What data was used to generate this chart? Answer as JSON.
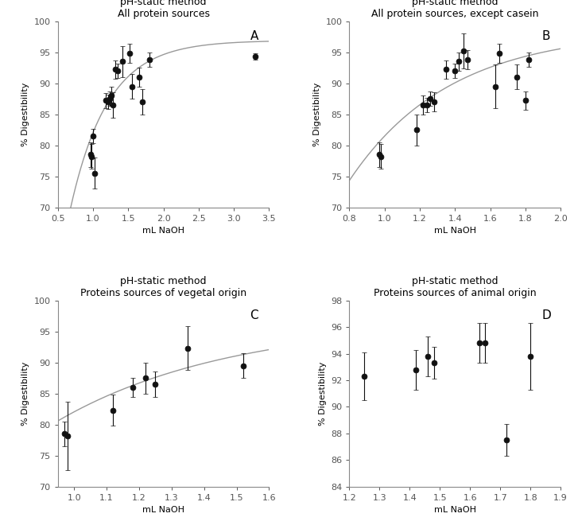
{
  "panel_A": {
    "title_line1": "pH-static method",
    "title_line2": "All protein sources",
    "label": "A",
    "xlabel": "mL NaOH",
    "ylabel": "% Digestibility",
    "xlim": [
      0.5,
      3.5
    ],
    "ylim": [
      70,
      100
    ],
    "xticks": [
      0.5,
      1.0,
      1.5,
      2.0,
      2.5,
      3.0,
      3.5
    ],
    "yticks": [
      70,
      75,
      80,
      85,
      90,
      95,
      100
    ],
    "curve_a": 96.8917,
    "curve_b": 1.8763,
    "data_x": [
      0.97,
      0.98,
      1.0,
      1.02,
      1.18,
      1.22,
      1.24,
      1.26,
      1.28,
      1.32,
      1.35,
      1.42,
      1.52,
      1.55,
      1.65,
      1.7,
      1.8,
      3.3
    ],
    "data_y": [
      78.5,
      78.2,
      81.5,
      75.5,
      87.2,
      87.0,
      87.5,
      88.0,
      86.5,
      92.2,
      92.0,
      93.5,
      94.8,
      89.5,
      91.0,
      87.0,
      93.8,
      94.3
    ],
    "data_yerr": [
      2.0,
      2.0,
      1.2,
      2.5,
      1.2,
      1.2,
      1.2,
      1.5,
      2.0,
      1.5,
      1.2,
      2.5,
      1.5,
      2.0,
      1.5,
      2.0,
      1.2,
      0.5
    ]
  },
  "panel_B": {
    "title_line1": "pH-static method",
    "title_line2": "All protein sources, except casein",
    "label": "B",
    "xlabel": "mL NaOH",
    "ylabel": "% Digestibility",
    "xlim": [
      0.8,
      2.0
    ],
    "ylim": [
      70,
      100
    ],
    "xticks": [
      0.8,
      1.0,
      1.2,
      1.4,
      1.6,
      1.8,
      2.0
    ],
    "yticks": [
      70,
      75,
      80,
      85,
      90,
      95,
      100
    ],
    "curve_a": 98.5048,
    "curve_b": 1.756,
    "data_x": [
      0.97,
      0.98,
      1.18,
      1.22,
      1.24,
      1.26,
      1.28,
      1.35,
      1.4,
      1.42,
      1.45,
      1.47,
      1.63,
      1.65,
      1.75,
      1.8,
      1.82
    ],
    "data_y": [
      78.5,
      78.2,
      82.5,
      86.5,
      86.5,
      87.5,
      87.0,
      92.2,
      92.0,
      93.5,
      95.2,
      93.8,
      89.5,
      94.8,
      91.0,
      87.2,
      93.8
    ],
    "data_yerr": [
      2.0,
      2.0,
      2.5,
      1.5,
      1.2,
      1.2,
      1.5,
      1.5,
      1.2,
      1.5,
      2.8,
      1.5,
      3.5,
      1.5,
      2.0,
      1.5,
      1.2
    ]
  },
  "panel_C": {
    "title_line1": "pH-static method",
    "title_line2": "Proteins sources of vegetal origin",
    "label": "C",
    "xlabel": "mL NaOH",
    "ylabel": "% Digestibility",
    "xlim": [
      0.95,
      1.6
    ],
    "ylim": [
      70,
      100
    ],
    "xticks": [
      1.0,
      1.1,
      1.2,
      1.3,
      1.4,
      1.5,
      1.6
    ],
    "yticks": [
      70,
      75,
      80,
      85,
      90,
      95,
      100
    ],
    "curve_a": 96.8917,
    "curve_b": 1.8763,
    "data_x": [
      0.97,
      0.98,
      1.12,
      1.18,
      1.22,
      1.25,
      1.35,
      1.52
    ],
    "data_y": [
      78.5,
      78.2,
      82.3,
      86.0,
      87.5,
      86.5,
      92.3,
      89.5
    ],
    "data_yerr": [
      2.0,
      5.5,
      2.5,
      1.5,
      2.5,
      2.0,
      3.5,
      2.0
    ]
  },
  "panel_D": {
    "title_line1": "pH-static method",
    "title_line2": "Proteins sources of animal origin",
    "label": "D",
    "xlabel": "mL NaOH",
    "ylabel": "% Digestibility",
    "xlim": [
      1.2,
      1.9
    ],
    "ylim": [
      84,
      98
    ],
    "xticks": [
      1.2,
      1.3,
      1.4,
      1.5,
      1.6,
      1.7,
      1.8,
      1.9
    ],
    "yticks": [
      84,
      86,
      88,
      90,
      92,
      94,
      96,
      98
    ],
    "data_x": [
      1.25,
      1.42,
      1.46,
      1.48,
      1.63,
      1.65,
      1.72,
      1.8
    ],
    "data_y": [
      92.3,
      92.8,
      93.8,
      93.3,
      94.8,
      94.8,
      87.5,
      93.8
    ],
    "data_yerr": [
      1.8,
      1.5,
      1.5,
      1.2,
      1.5,
      1.5,
      1.2,
      2.5
    ]
  },
  "bg_color": "#ffffff",
  "plot_bg_color": "#ffffff",
  "marker_color": "#111111",
  "curve_color": "#999999",
  "marker_size": 5,
  "line_width": 1.0,
  "font_size_title": 9,
  "font_size_label": 8,
  "font_size_tick": 8,
  "font_size_panel_label": 11
}
